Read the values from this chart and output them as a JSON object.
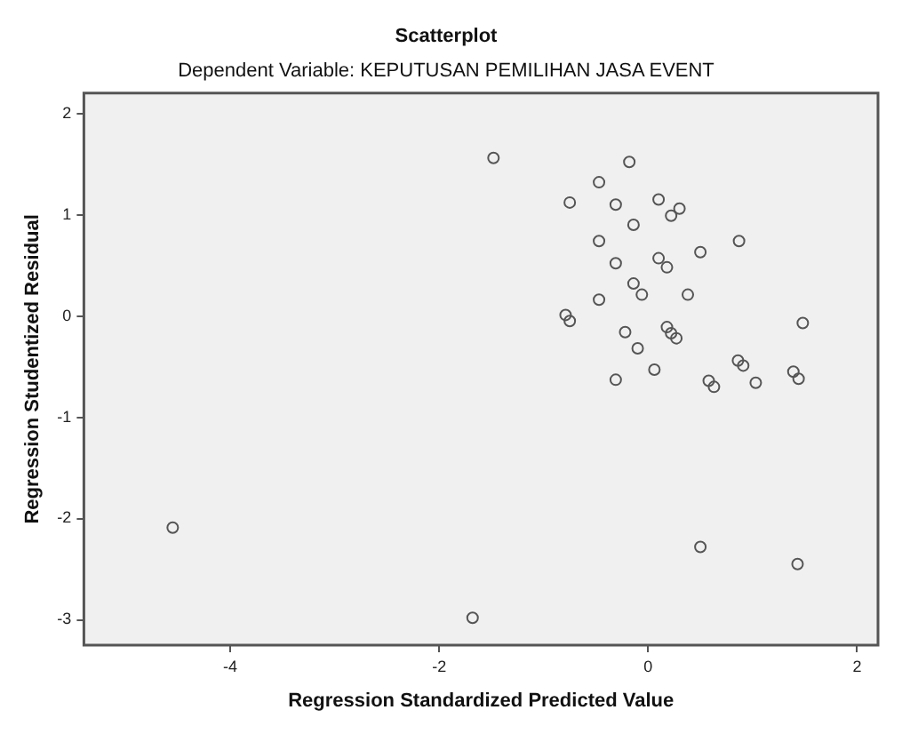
{
  "chart_data": {
    "type": "scatter",
    "title": "Scatterplot",
    "subtitle": "Dependent Variable: KEPUTUSAN PEMILIHAN JASA EVENT",
    "xlabel": "Regression Standardized Predicted Value",
    "ylabel": "Regression Studentized Residual",
    "x": [
      -1.48,
      -0.18,
      -0.47,
      -0.75,
      -0.31,
      0.1,
      0.3,
      0.22,
      -0.14,
      -0.47,
      0.87,
      -0.31,
      0.1,
      0.18,
      0.5,
      -0.14,
      -0.06,
      0.38,
      -0.47,
      -0.79,
      -0.75,
      1.48,
      0.18,
      0.22,
      0.27,
      -0.22,
      -0.1,
      0.06,
      -0.31,
      0.86,
      0.91,
      0.58,
      0.63,
      1.03,
      1.39,
      1.44,
      -4.55,
      -1.68,
      0.5,
      1.43
    ],
    "series": [
      {
        "color": "#555555",
        "values": [
          1.56,
          1.52,
          1.32,
          1.12,
          1.1,
          1.15,
          1.06,
          0.99,
          0.9,
          0.74,
          0.74,
          0.52,
          0.57,
          0.48,
          0.63,
          0.32,
          0.21,
          0.21,
          0.16,
          0.01,
          -0.05,
          -0.07,
          -0.11,
          -0.17,
          -0.22,
          -0.16,
          -0.32,
          -0.53,
          -0.63,
          -0.44,
          -0.49,
          -0.64,
          -0.7,
          -0.66,
          -0.55,
          -0.62,
          -2.09,
          -2.98,
          -2.28,
          -2.45
        ]
      }
    ],
    "xlim": [
      -5.4,
      2.2
    ],
    "ylim": [
      -3.25,
      2.2
    ],
    "xticks": [
      -4,
      -2,
      0,
      2
    ],
    "yticks": [
      -3,
      -2,
      -1,
      0,
      1,
      2
    ],
    "marker": "circle",
    "grid": false,
    "legend": false
  }
}
